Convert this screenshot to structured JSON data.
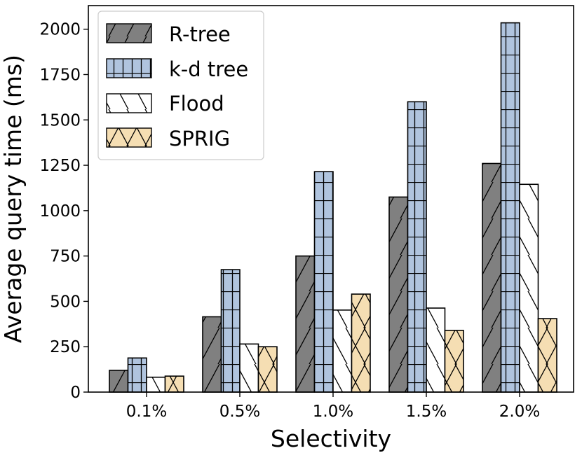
{
  "chart_data": {
    "type": "bar",
    "title": "",
    "xlabel": "Selectivity",
    "ylabel": "Average query time (ms)",
    "categories": [
      "0.1%",
      "0.5%",
      "1.0%",
      "1.5%",
      "2.0%"
    ],
    "ylim": [
      0,
      2130
    ],
    "yticks": [
      "0",
      "250",
      "500",
      "750",
      "1000",
      "1250",
      "1500",
      "1750",
      "2000"
    ],
    "grid": false,
    "legend_position": "top-left",
    "series": [
      {
        "name": "R-tree",
        "values": [
          120,
          415,
          750,
          1075,
          1260
        ],
        "color": "#808080",
        "hatch": "slash"
      },
      {
        "name": "k-d tree",
        "values": [
          188,
          675,
          1215,
          1600,
          2035
        ],
        "color": "#b0c4de",
        "hatch": "grid"
      },
      {
        "name": "Flood",
        "values": [
          82,
          265,
          452,
          463,
          1145
        ],
        "color": "#ffffff",
        "hatch": "backslash"
      },
      {
        "name": "SPRIG",
        "values": [
          88,
          250,
          540,
          340,
          405
        ],
        "color": "#f5deb3",
        "hatch": "cross"
      }
    ]
  }
}
